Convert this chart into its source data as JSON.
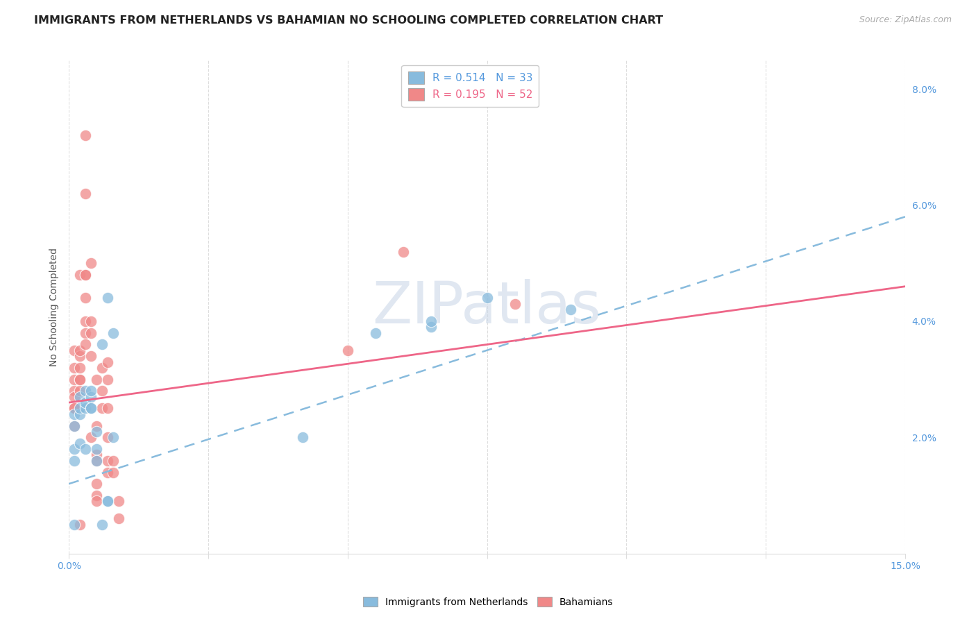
{
  "title": "IMMIGRANTS FROM NETHERLANDS VS BAHAMIAN NO SCHOOLING COMPLETED CORRELATION CHART",
  "source": "Source: ZipAtlas.com",
  "ylabel": "No Schooling Completed",
  "right_yticklabels": [
    "",
    "2.0%",
    "4.0%",
    "6.0%",
    "8.0%"
  ],
  "right_yticks": [
    0.0,
    0.02,
    0.04,
    0.06,
    0.08
  ],
  "blue_scatter": [
    [
      0.001,
      0.018
    ],
    [
      0.001,
      0.016
    ],
    [
      0.001,
      0.024
    ],
    [
      0.001,
      0.022
    ],
    [
      0.002,
      0.019
    ],
    [
      0.002,
      0.024
    ],
    [
      0.002,
      0.027
    ],
    [
      0.002,
      0.025
    ],
    [
      0.003,
      0.025
    ],
    [
      0.003,
      0.026
    ],
    [
      0.003,
      0.028
    ],
    [
      0.003,
      0.018
    ],
    [
      0.004,
      0.027
    ],
    [
      0.004,
      0.025
    ],
    [
      0.004,
      0.028
    ],
    [
      0.004,
      0.025
    ],
    [
      0.005,
      0.018
    ],
    [
      0.005,
      0.021
    ],
    [
      0.005,
      0.016
    ],
    [
      0.006,
      0.005
    ],
    [
      0.006,
      0.036
    ],
    [
      0.007,
      0.044
    ],
    [
      0.008,
      0.038
    ],
    [
      0.008,
      0.02
    ],
    [
      0.001,
      0.005
    ],
    [
      0.007,
      0.009
    ],
    [
      0.042,
      0.02
    ],
    [
      0.055,
      0.038
    ],
    [
      0.065,
      0.039
    ],
    [
      0.065,
      0.04
    ],
    [
      0.075,
      0.044
    ],
    [
      0.09,
      0.042
    ],
    [
      0.007,
      0.009
    ]
  ],
  "pink_scatter": [
    [
      0.001,
      0.028
    ],
    [
      0.001,
      0.025
    ],
    [
      0.001,
      0.035
    ],
    [
      0.001,
      0.032
    ],
    [
      0.001,
      0.03
    ],
    [
      0.001,
      0.027
    ],
    [
      0.001,
      0.025
    ],
    [
      0.001,
      0.022
    ],
    [
      0.002,
      0.034
    ],
    [
      0.002,
      0.03
    ],
    [
      0.002,
      0.028
    ],
    [
      0.002,
      0.048
    ],
    [
      0.002,
      0.03
    ],
    [
      0.002,
      0.035
    ],
    [
      0.002,
      0.032
    ],
    [
      0.003,
      0.072
    ],
    [
      0.003,
      0.062
    ],
    [
      0.003,
      0.048
    ],
    [
      0.003,
      0.048
    ],
    [
      0.003,
      0.044
    ],
    [
      0.003,
      0.04
    ],
    [
      0.003,
      0.038
    ],
    [
      0.003,
      0.036
    ],
    [
      0.004,
      0.04
    ],
    [
      0.004,
      0.038
    ],
    [
      0.004,
      0.034
    ],
    [
      0.004,
      0.02
    ],
    [
      0.004,
      0.05
    ],
    [
      0.005,
      0.03
    ],
    [
      0.005,
      0.022
    ],
    [
      0.005,
      0.017
    ],
    [
      0.005,
      0.016
    ],
    [
      0.005,
      0.012
    ],
    [
      0.005,
      0.01
    ],
    [
      0.005,
      0.009
    ],
    [
      0.006,
      0.032
    ],
    [
      0.006,
      0.028
    ],
    [
      0.006,
      0.025
    ],
    [
      0.007,
      0.033
    ],
    [
      0.007,
      0.03
    ],
    [
      0.007,
      0.025
    ],
    [
      0.007,
      0.02
    ],
    [
      0.007,
      0.016
    ],
    [
      0.007,
      0.014
    ],
    [
      0.008,
      0.016
    ],
    [
      0.008,
      0.014
    ],
    [
      0.009,
      0.009
    ],
    [
      0.05,
      0.035
    ],
    [
      0.06,
      0.052
    ],
    [
      0.08,
      0.043
    ],
    [
      0.002,
      0.005
    ],
    [
      0.009,
      0.006
    ]
  ],
  "blue_line_x": [
    0.0,
    0.15
  ],
  "blue_line_y": [
    0.012,
    0.058
  ],
  "pink_line_x": [
    0.0,
    0.15
  ],
  "pink_line_y": [
    0.026,
    0.046
  ],
  "xlim": [
    0.0,
    0.15
  ],
  "ylim": [
    0.0,
    0.085
  ],
  "blue_color": "#88bbdd",
  "pink_color": "#f08888",
  "blue_line_color": "#88bbdd",
  "pink_line_color": "#ee6688",
  "grid_color": "#dddddd",
  "bg_color": "#ffffff",
  "title_fontsize": 11.5,
  "source_fontsize": 9,
  "tick_color": "#5599dd",
  "legend_r1": "R = 0.514   N = 33",
  "legend_r2": "R = 0.195   N = 52",
  "legend_color1": "#5599dd",
  "legend_color2": "#ee6688",
  "bottom_label1": "Immigrants from Netherlands",
  "bottom_label2": "Bahamians",
  "watermark_text": "ZIPatlas",
  "watermark_color": "#ccd8e8"
}
